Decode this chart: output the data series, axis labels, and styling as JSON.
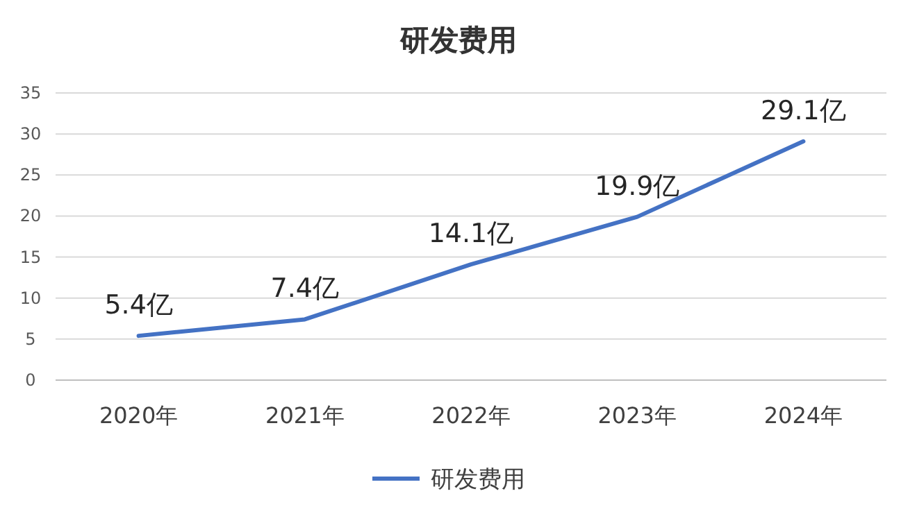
{
  "chart_data": {
    "type": "line",
    "title": "研发费用",
    "categories": [
      "2020年",
      "2021年",
      "2022年",
      "2023年",
      "2024年"
    ],
    "series": [
      {
        "name": "研发费用",
        "color": "#4472c4",
        "values": [
          5.4,
          7.4,
          14.1,
          19.9,
          29.1
        ],
        "value_labels": [
          "5.4亿",
          "7.4亿",
          "14.1亿",
          "19.9亿",
          "29.1亿"
        ]
      }
    ],
    "ylim": [
      0,
      35
    ],
    "yticks": [
      0,
      5,
      10,
      15,
      20,
      25,
      30,
      35
    ],
    "grid": "y",
    "legend": "bottom",
    "marker": "none"
  }
}
